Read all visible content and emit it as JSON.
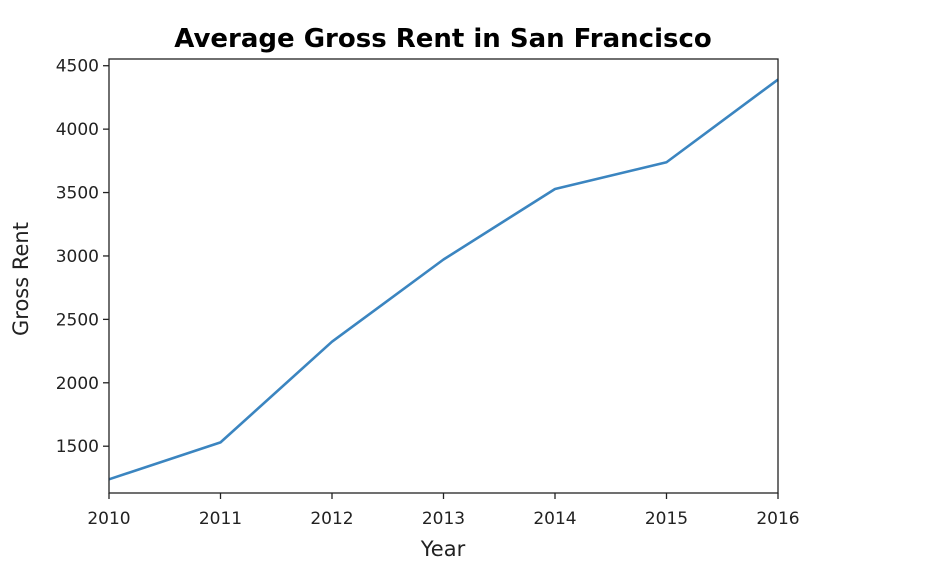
{
  "chart_data": {
    "type": "line",
    "title": "Average Gross Rent in San Francisco",
    "xlabel": "Year",
    "ylabel": "Gross Rent",
    "x": [
      2010,
      2011,
      2012,
      2013,
      2014,
      2015,
      2016
    ],
    "series": [
      {
        "values": [
          1239,
          1530,
          2324,
          2972,
          3528,
          3739,
          4391
        ]
      }
    ],
    "x_ticks": [
      "2010",
      "2011",
      "2012",
      "2013",
      "2014",
      "2015",
      "2016"
    ],
    "y_ticks": [
      "1500",
      "2000",
      "2500",
      "3000",
      "3500",
      "4000",
      "4500"
    ],
    "xlim": [
      2010,
      2016
    ],
    "ylim": [
      1131,
      4553
    ],
    "grid": false,
    "line_color": "#3b85c0"
  }
}
